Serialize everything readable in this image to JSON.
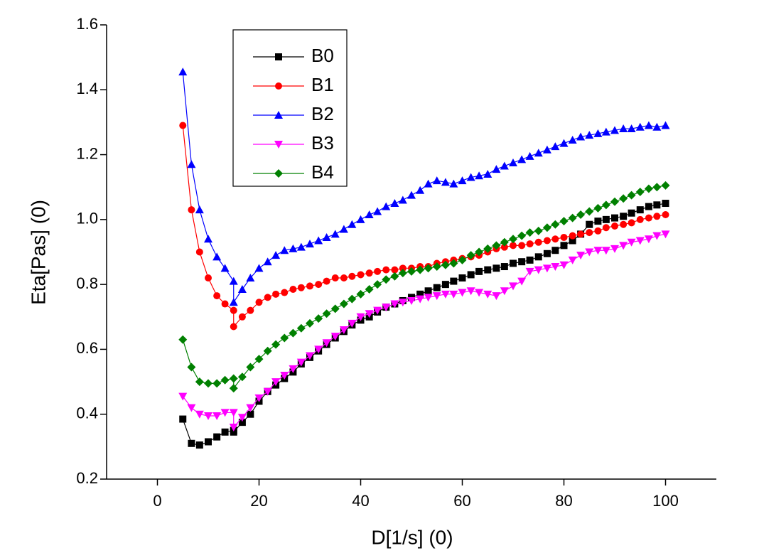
{
  "chart_data": {
    "type": "line",
    "x_label": "D[1/s] (0)",
    "y_label": "Eta[Pas] (0)",
    "x": [
      5,
      6.7,
      8.3,
      10,
      11.7,
      13.3,
      15,
      15,
      16.7,
      18.3,
      20,
      21.7,
      23.3,
      25,
      26.7,
      28.3,
      30,
      31.7,
      33.3,
      35,
      36.7,
      38.3,
      40,
      41.7,
      43.3,
      45,
      46.7,
      48.3,
      50,
      51.7,
      53.3,
      55,
      56.7,
      58.3,
      60,
      61.7,
      63.3,
      65,
      66.7,
      68.3,
      70,
      71.7,
      73.3,
      75,
      76.7,
      78.3,
      80,
      81.7,
      83.3,
      85,
      86.7,
      88.3,
      90,
      91.7,
      93.3,
      95,
      96.7,
      98.3,
      100
    ],
    "series": [
      {
        "name": "B0",
        "color": "#000000",
        "marker": "square",
        "values": [
          0.385,
          0.31,
          0.305,
          0.315,
          0.33,
          0.345,
          0.35,
          0.345,
          0.375,
          0.4,
          0.44,
          0.47,
          0.49,
          0.51,
          0.53,
          0.555,
          0.575,
          0.595,
          0.615,
          0.635,
          0.655,
          0.675,
          0.69,
          0.7,
          0.715,
          0.73,
          0.74,
          0.75,
          0.76,
          0.77,
          0.78,
          0.79,
          0.8,
          0.81,
          0.82,
          0.83,
          0.84,
          0.845,
          0.85,
          0.855,
          0.865,
          0.87,
          0.875,
          0.885,
          0.895,
          0.905,
          0.92,
          0.935,
          0.955,
          0.985,
          0.995,
          1.0,
          1.005,
          1.01,
          1.02,
          1.03,
          1.04,
          1.045,
          1.05
        ]
      },
      {
        "name": "B1",
        "color": "#ff0000",
        "marker": "circle",
        "values": [
          1.29,
          1.03,
          0.9,
          0.82,
          0.765,
          0.74,
          0.72,
          0.67,
          0.7,
          0.72,
          0.745,
          0.76,
          0.77,
          0.775,
          0.785,
          0.79,
          0.795,
          0.8,
          0.81,
          0.82,
          0.82,
          0.825,
          0.83,
          0.835,
          0.84,
          0.845,
          0.845,
          0.85,
          0.85,
          0.855,
          0.855,
          0.865,
          0.87,
          0.875,
          0.88,
          0.885,
          0.89,
          0.9,
          0.91,
          0.915,
          0.92,
          0.92,
          0.925,
          0.93,
          0.935,
          0.94,
          0.945,
          0.95,
          0.955,
          0.96,
          0.965,
          0.975,
          0.98,
          0.985,
          0.99,
          1.0,
          1.005,
          1.01,
          1.015
        ]
      },
      {
        "name": "B2",
        "color": "#0000ff",
        "marker": "triangle-up",
        "values": [
          1.455,
          1.17,
          1.03,
          0.94,
          0.885,
          0.85,
          0.81,
          0.745,
          0.785,
          0.82,
          0.85,
          0.87,
          0.89,
          0.905,
          0.91,
          0.915,
          0.925,
          0.935,
          0.945,
          0.955,
          0.97,
          0.985,
          1.0,
          1.015,
          1.025,
          1.04,
          1.05,
          1.06,
          1.075,
          1.09,
          1.11,
          1.12,
          1.115,
          1.11,
          1.12,
          1.13,
          1.135,
          1.14,
          1.155,
          1.165,
          1.175,
          1.185,
          1.195,
          1.205,
          1.215,
          1.225,
          1.235,
          1.245,
          1.255,
          1.26,
          1.265,
          1.27,
          1.275,
          1.28,
          1.28,
          1.285,
          1.29,
          1.285,
          1.29
        ]
      },
      {
        "name": "B3",
        "color": "#ff00ff",
        "marker": "triangle-down",
        "values": [
          0.455,
          0.42,
          0.4,
          0.395,
          0.395,
          0.405,
          0.405,
          0.36,
          0.39,
          0.42,
          0.45,
          0.47,
          0.5,
          0.52,
          0.54,
          0.56,
          0.58,
          0.6,
          0.62,
          0.64,
          0.66,
          0.68,
          0.7,
          0.71,
          0.72,
          0.73,
          0.74,
          0.745,
          0.75,
          0.755,
          0.76,
          0.765,
          0.77,
          0.77,
          0.775,
          0.78,
          0.775,
          0.77,
          0.765,
          0.78,
          0.795,
          0.81,
          0.84,
          0.845,
          0.85,
          0.855,
          0.86,
          0.875,
          0.89,
          0.9,
          0.905,
          0.905,
          0.91,
          0.92,
          0.93,
          0.935,
          0.94,
          0.95,
          0.955
        ]
      },
      {
        "name": "B4",
        "color": "#008000",
        "marker": "diamond",
        "values": [
          0.63,
          0.545,
          0.5,
          0.495,
          0.495,
          0.505,
          0.51,
          0.48,
          0.515,
          0.545,
          0.57,
          0.595,
          0.615,
          0.635,
          0.65,
          0.665,
          0.68,
          0.695,
          0.71,
          0.725,
          0.74,
          0.755,
          0.77,
          0.785,
          0.8,
          0.815,
          0.825,
          0.835,
          0.84,
          0.845,
          0.85,
          0.855,
          0.86,
          0.865,
          0.875,
          0.89,
          0.9,
          0.91,
          0.92,
          0.93,
          0.94,
          0.95,
          0.96,
          0.965,
          0.975,
          0.985,
          0.995,
          1.005,
          1.015,
          1.025,
          1.035,
          1.045,
          1.055,
          1.065,
          1.075,
          1.085,
          1.095,
          1.1,
          1.105
        ]
      }
    ],
    "xlim": [
      -10,
      110
    ],
    "xticks": [
      0,
      20,
      40,
      60,
      80,
      100
    ],
    "ylim": [
      0.2,
      1.6
    ],
    "yticks": [
      0.2,
      0.4,
      0.6,
      0.8,
      {
        "value": 1,
        "label": "1.0"
      },
      1.2,
      1.4,
      1.6
    ],
    "grid": false,
    "legend": "upper-left"
  }
}
